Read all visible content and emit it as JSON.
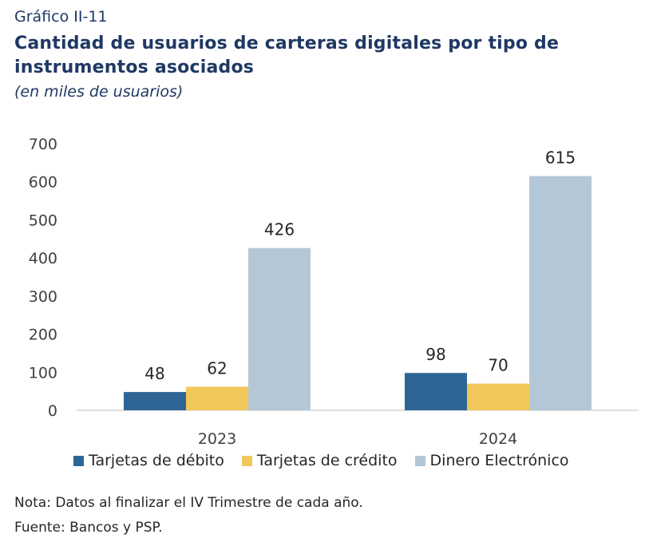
{
  "header": {
    "label": "Gráfico II-11",
    "title": "Cantidad de usuarios de carteras digitales por tipo de instrumentos asociados",
    "subtitle": "(en miles de usuarios)"
  },
  "chart_data": {
    "type": "bar",
    "categories": [
      "2023",
      "2024"
    ],
    "series": [
      {
        "name": "Tarjetas de débito",
        "values": [
          48,
          98
        ],
        "color": "#2e6595"
      },
      {
        "name": "Tarjetas de crédito",
        "values": [
          62,
          70
        ],
        "color": "#f2c85b"
      },
      {
        "name": "Dinero Electrónico",
        "values": [
          426,
          615
        ],
        "color": "#b4c7d7"
      }
    ],
    "ylim": [
      0,
      700
    ],
    "yticks": [
      "0",
      "100",
      "200",
      "300",
      "400",
      "500",
      "600",
      "700"
    ],
    "grid": false,
    "legend_position": "bottom"
  },
  "footer": {
    "note": "Nota: Datos al finalizar el IV Trimestre de cada año.",
    "source": "Fuente: Bancos y PSP."
  }
}
